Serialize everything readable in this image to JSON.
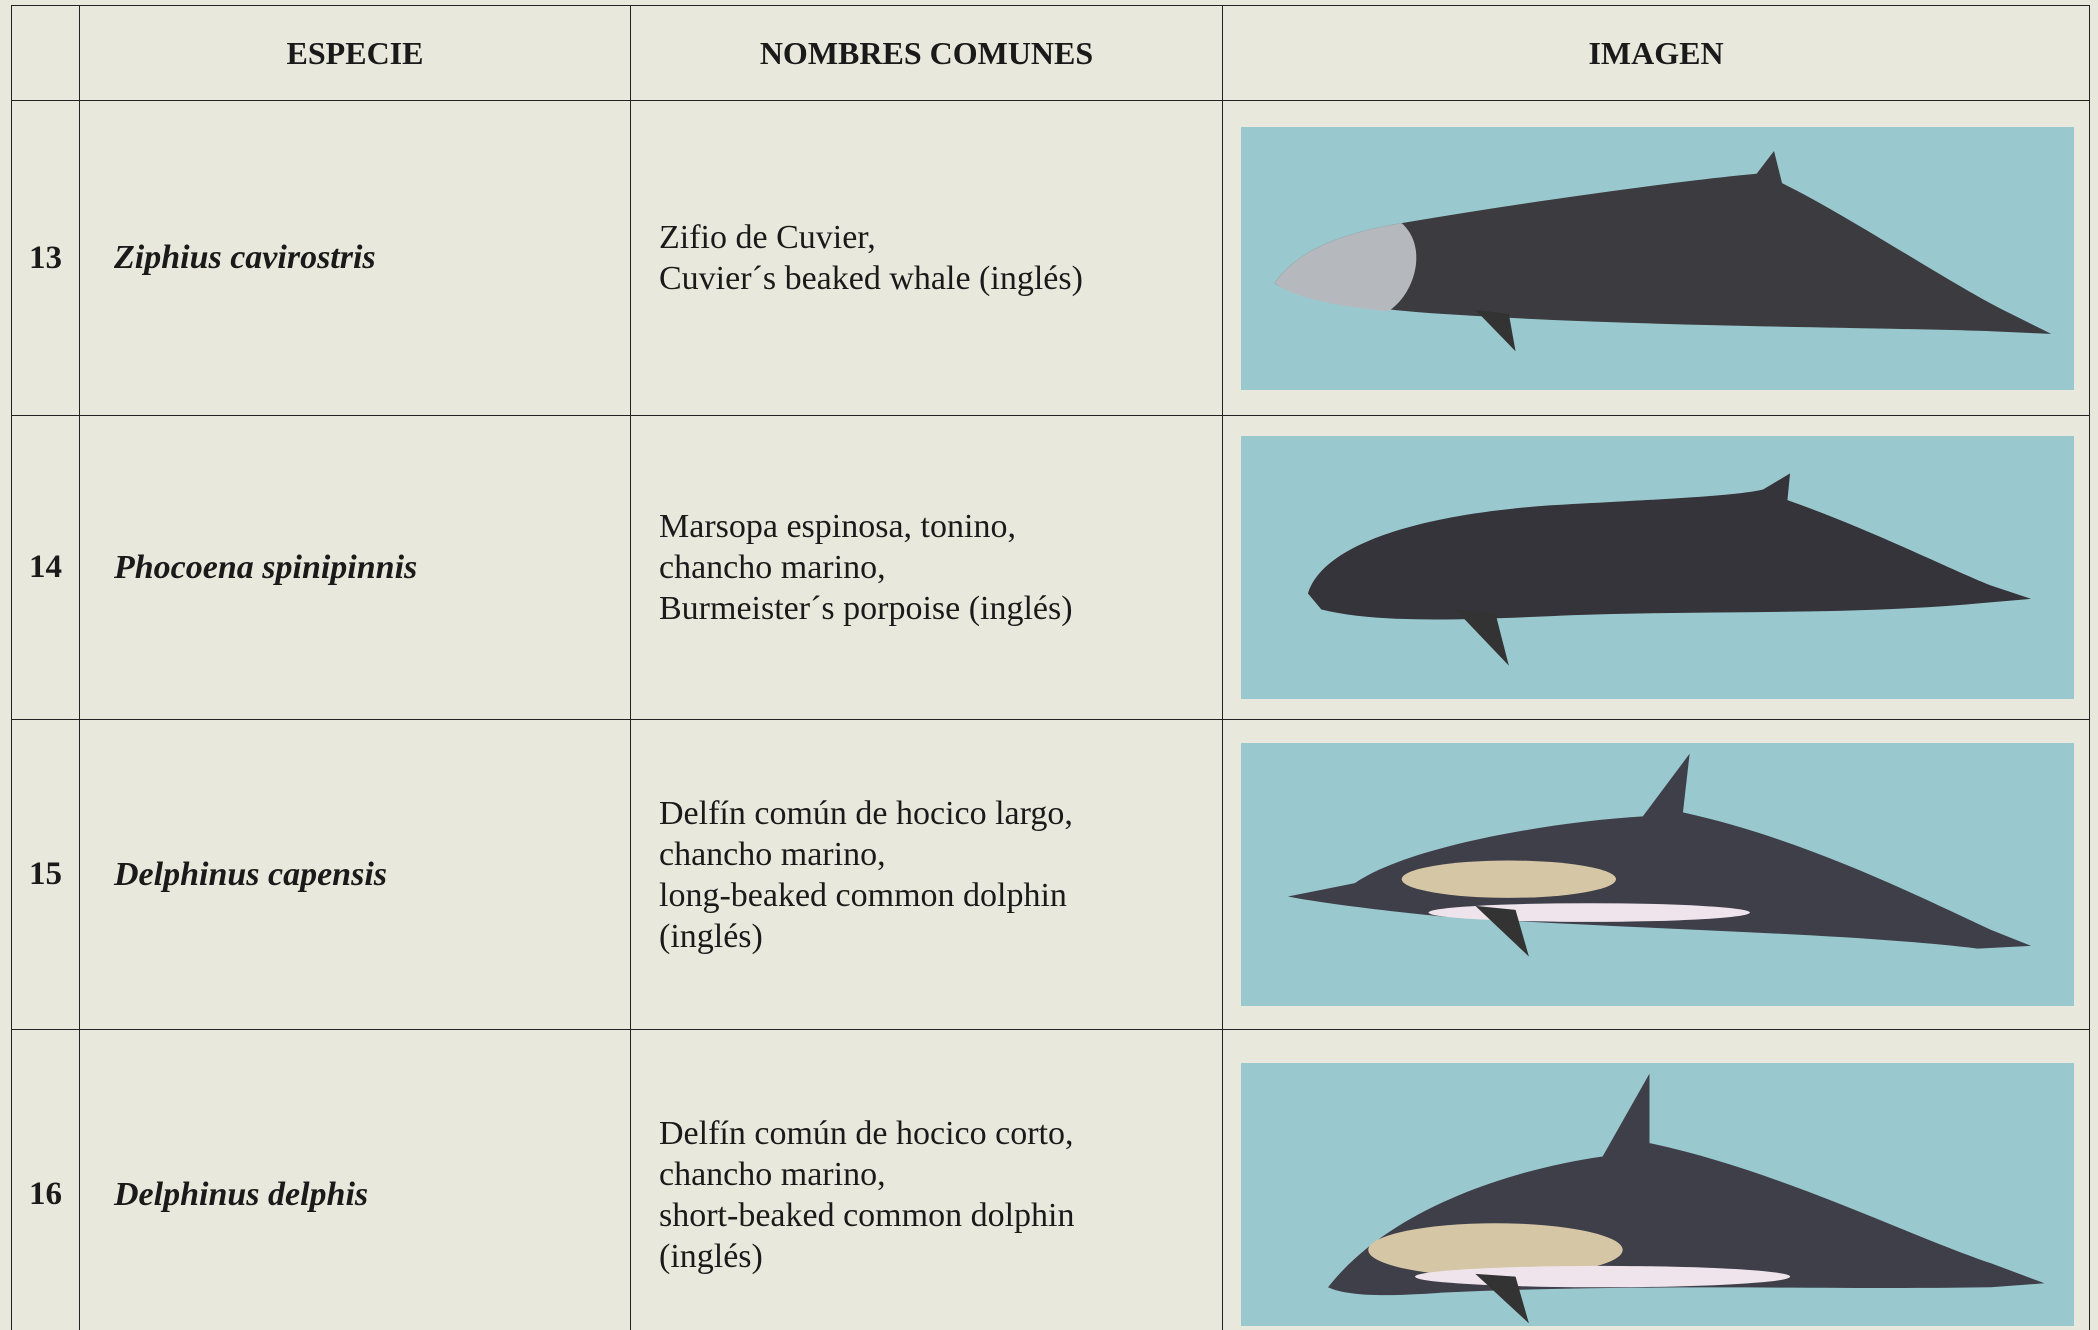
{
  "header": {
    "species": "ESPECIE",
    "common_names": "NOMBRES COMUNES",
    "image": "IMAGEN"
  },
  "rows": [
    {
      "number": 13,
      "species": "Ziphius cavirostris",
      "common_names": [
        "Zifio de Cuvier,",
        "Cuvier´s beaked whale (inglés)"
      ]
    },
    {
      "number": 14,
      "species": "Phocoena spinipinnis",
      "common_names": [
        "Marsopa espinosa, tonino,",
        "chancho marino,",
        "Burmeister´s porpoise (inglés)"
      ]
    },
    {
      "number": 15,
      "species": "Delphinus capensis",
      "common_names": [
        "Delfín común de hocico largo,",
        "chancho marino,",
        "long-beaked common dolphin",
        "(inglés)"
      ]
    },
    {
      "number": 16,
      "species": "Delphinus delphis",
      "common_names": [
        "Delfín común de hocico corto,",
        "chancho marino,",
        "short-beaked common dolphin",
        "(inglés)"
      ]
    }
  ]
}
